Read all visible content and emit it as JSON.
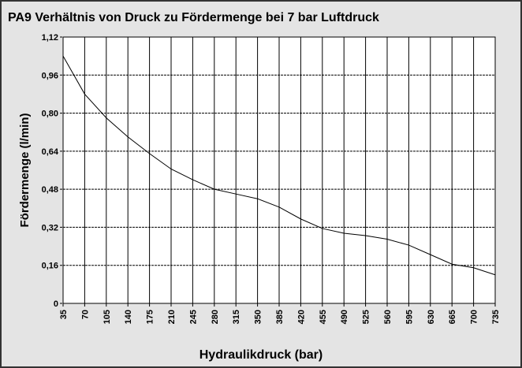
{
  "chart_data": {
    "type": "line",
    "title": "PA9 Verhältnis von Druck zu Fördermenge bei 7 bar Luftdruck",
    "x_label": "Hydraulikdruck (bar)",
    "y_label": "Fördermenge (l/min)",
    "x": [
      35,
      70,
      105,
      140,
      175,
      210,
      245,
      280,
      315,
      350,
      385,
      420,
      455,
      490,
      525,
      560,
      595,
      630,
      665,
      700,
      735
    ],
    "series": [
      {
        "name": "Fördermenge",
        "color": "#000000",
        "values": [
          1.04,
          0.88,
          0.78,
          0.7,
          0.63,
          0.565,
          0.52,
          0.48,
          0.46,
          0.44,
          0.405,
          0.355,
          0.315,
          0.295,
          0.285,
          0.27,
          0.245,
          0.205,
          0.165,
          0.15,
          0.12
        ]
      }
    ],
    "xlim": [
      35,
      735
    ],
    "xticks": [
      35,
      70,
      105,
      140,
      175,
      210,
      245,
      280,
      315,
      350,
      385,
      420,
      455,
      490,
      525,
      560,
      595,
      630,
      665,
      700,
      735
    ],
    "ylim": [
      0,
      1.12
    ],
    "yticks": [
      0,
      {
        "value": 0.16,
        "label": "0,16"
      },
      {
        "value": 0.32,
        "label": "0,32"
      },
      {
        "value": 0.48,
        "label": "0,48"
      },
      {
        "value": 0.64,
        "label": "0,64"
      },
      {
        "value": 0.8,
        "label": "0,80"
      },
      {
        "value": 0.96,
        "label": "0,96"
      },
      {
        "value": 1.12,
        "label": "1,12"
      }
    ],
    "grid": true
  }
}
